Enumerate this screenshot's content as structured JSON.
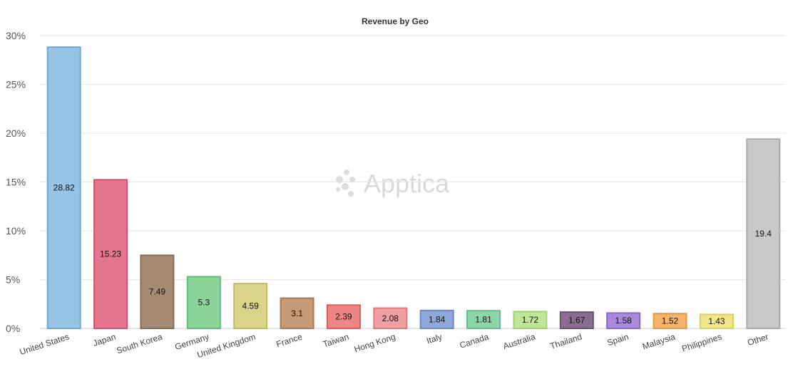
{
  "watermark": {
    "text": "Apptica",
    "icon": "apptica-logo-icon"
  },
  "chart_data": {
    "type": "bar",
    "title": "Revenue by Geo",
    "xlabel": "",
    "ylabel": "",
    "ylim": [
      0,
      30
    ],
    "yticks": [
      0,
      5,
      10,
      15,
      20,
      25,
      30
    ],
    "ytick_labels": [
      "0%",
      "5%",
      "10%",
      "15%",
      "20%",
      "25%",
      "30%"
    ],
    "grid": true,
    "legend": "none",
    "categories": [
      "United States",
      "Japan",
      "South Korea",
      "Germany",
      "United Kingdom",
      "France",
      "Taiwan",
      "Hong Kong",
      "Italy",
      "Canada",
      "Australia",
      "Thailand",
      "Spain",
      "Malaysia",
      "Philippines",
      "Other"
    ],
    "values": [
      28.82,
      15.23,
      7.49,
      5.3,
      4.59,
      3.1,
      2.39,
      2.08,
      1.84,
      1.81,
      1.72,
      1.67,
      1.58,
      1.52,
      1.43,
      19.4
    ],
    "data_labels": [
      "28.82",
      "15.23",
      "7.49",
      "5.3",
      "4.59",
      "3.1",
      "2.39",
      "2.08",
      "1.84",
      "1.81",
      "1.72",
      "1.67",
      "1.58",
      "1.52",
      "1.43",
      "19.4"
    ],
    "colors": [
      "#96c3e6",
      "#e6758f",
      "#a68b74",
      "#8ad49a",
      "#d9d48a",
      "#c49a77",
      "#ee8585",
      "#f0a0a0",
      "#8ea9d9",
      "#8ed4a9",
      "#c0e69a",
      "#8a6e90",
      "#a98adb",
      "#f5b36b",
      "#f0e68a",
      "#c8c8c8"
    ],
    "border_colors": [
      "#6aa9d6",
      "#d64f72",
      "#8a6c55",
      "#5fbf76",
      "#c2bc5f",
      "#a67a55",
      "#e05a5a",
      "#e07a7a",
      "#6a88c4",
      "#5fbf89",
      "#9ed46a",
      "#6a4e72",
      "#8a66c9",
      "#e89a3f",
      "#dcd05f",
      "#aaaaaa"
    ]
  }
}
